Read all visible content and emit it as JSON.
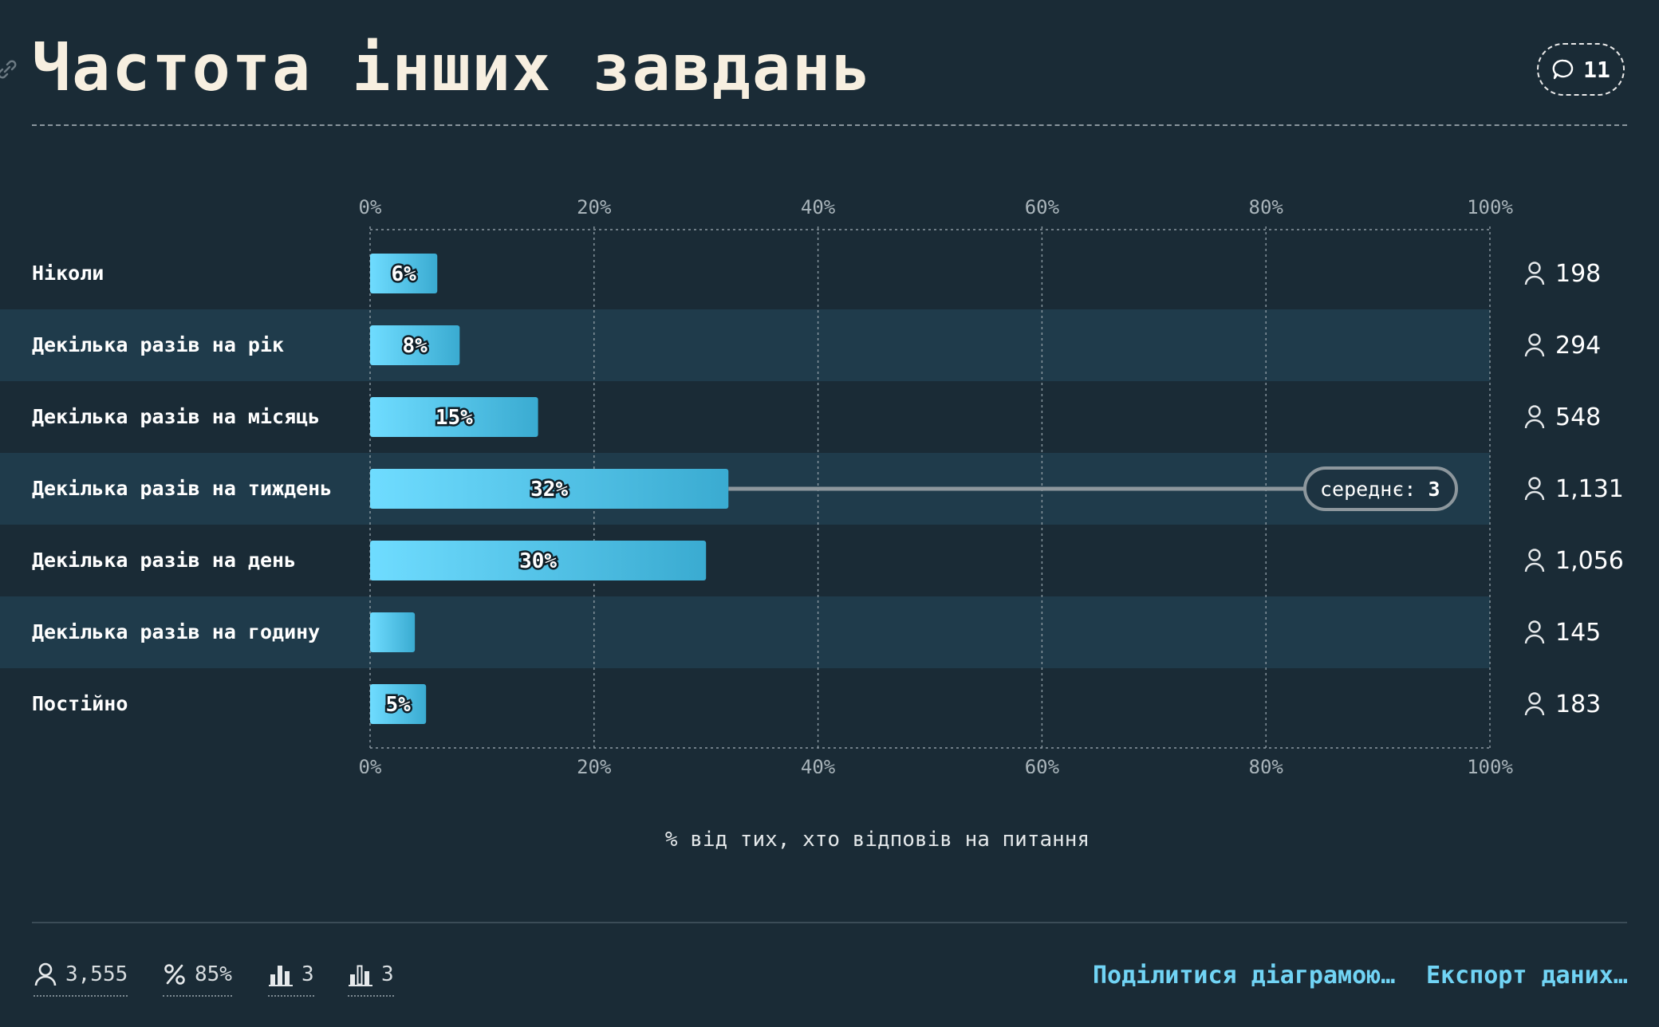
{
  "header": {
    "title": "Частота інших завдань",
    "comment_count": "11"
  },
  "chart_data": {
    "type": "bar",
    "orientation": "horizontal",
    "categories": [
      "Ніколи",
      "Декілька разів на рік",
      "Декілька разів на місяць",
      "Декілька разів на тиждень",
      "Декілька разів на день",
      "Декілька разів на годину",
      "Постійно"
    ],
    "values": [
      6,
      8,
      15,
      32,
      30,
      4,
      5
    ],
    "value_labels": [
      "6%",
      "8%",
      "15%",
      "32%",
      "30%",
      "",
      "5%"
    ],
    "respondents": [
      "198",
      "294",
      "548",
      "1,131",
      "1,056",
      "145",
      "183"
    ],
    "xlim": [
      0,
      100
    ],
    "xticks": [
      0,
      20,
      40,
      60,
      80,
      100
    ],
    "xtick_labels": [
      "0%",
      "20%",
      "40%",
      "60%",
      "80%",
      "100%"
    ],
    "xlabel": "% від тих, хто відповів на питання",
    "average": {
      "label": "середнє:",
      "value": "3",
      "category_index": 3
    },
    "grid": true,
    "colors": {
      "bar_start": "#6fdcff",
      "bar_end": "#3aabd1",
      "band": "#1f3b4b",
      "background": "#1a2b36"
    }
  },
  "footer": {
    "stats": [
      {
        "icon": "person-icon",
        "value": "3,555"
      },
      {
        "icon": "percent-icon",
        "value": "85%"
      },
      {
        "icon": "bar-chart-icon",
        "value": "3"
      },
      {
        "icon": "bar-chart-outline-icon",
        "value": "3"
      }
    ],
    "share_label": "Поділитися діаграмою…",
    "export_label": "Експорт даних…"
  }
}
